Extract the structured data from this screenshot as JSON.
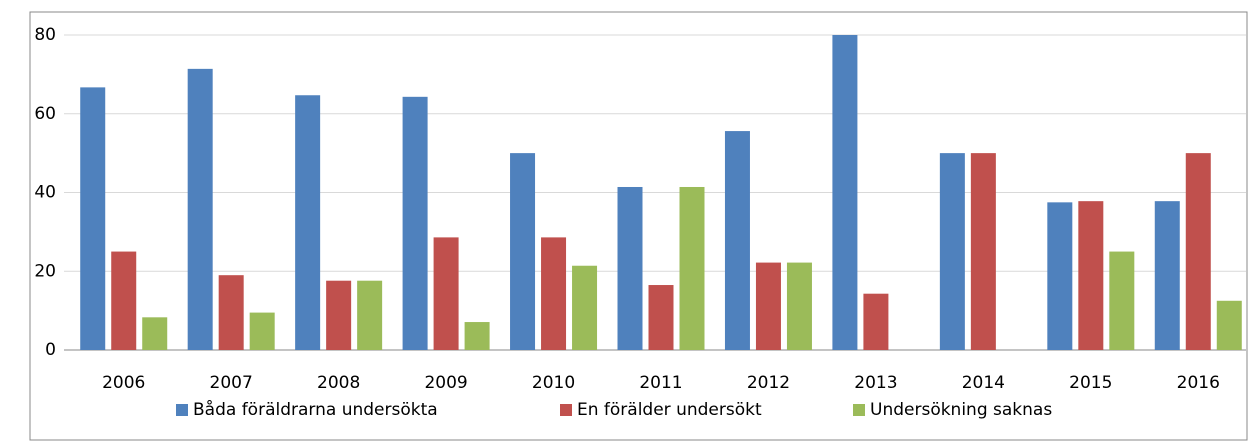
{
  "chart_data": {
    "type": "bar",
    "categories": [
      "2006",
      "2007",
      "2008",
      "2009",
      "2010",
      "2011",
      "2012",
      "2013",
      "2014",
      "2015",
      "2016"
    ],
    "series": [
      {
        "name": "Båda föräldrarna undersökta",
        "color": "#4f81bd",
        "values": [
          66.7,
          71.4,
          64.7,
          64.3,
          50,
          41.4,
          55.6,
          80,
          50,
          37.5,
          37.8
        ]
      },
      {
        "name": "En förälder undersökt",
        "color": "#c0504d",
        "values": [
          25,
          19,
          17.6,
          28.6,
          28.6,
          16.5,
          22.2,
          14.3,
          50,
          37.8,
          50
        ]
      },
      {
        "name": "Undersökning saknas",
        "color": "#9bbb59",
        "values": [
          8.3,
          9.5,
          17.6,
          7.1,
          21.4,
          41.4,
          22.2,
          0,
          0,
          25,
          12.5
        ]
      }
    ],
    "ylim": [
      0,
      80
    ],
    "yticks": [
      0,
      20,
      40,
      60,
      80
    ],
    "grid": true,
    "legend": "bottom"
  }
}
